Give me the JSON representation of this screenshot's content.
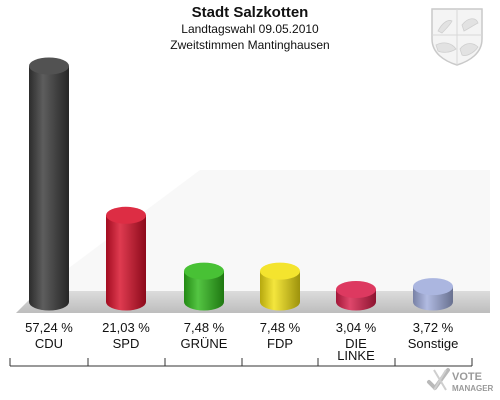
{
  "header": {
    "title": "Stadt Salzkotten",
    "subtitle": "Landtagswahl 09.05.2010",
    "subtitle2": "Zweitstimmen Mantinghausen"
  },
  "chart_data": {
    "type": "bar",
    "title": "Stadt Salzkotten",
    "subtitle": "Landtagswahl 09.05.2010 · Zweitstimmen Mantinghausen",
    "categories": [
      "CDU",
      "SPD",
      "GRÜNE",
      "FDP",
      "DIE LINKE",
      "Sonstige"
    ],
    "category_lines": [
      [
        "CDU"
      ],
      [
        "SPD"
      ],
      [
        "GRÜNE"
      ],
      [
        "FDP"
      ],
      [
        "DIE",
        "LINKE"
      ],
      [
        "Sonstige"
      ]
    ],
    "values": [
      57.24,
      21.03,
      7.48,
      7.48,
      3.04,
      3.72
    ],
    "value_labels": [
      "57,24 %",
      "21,03 %",
      "7,48 %",
      "7,48 %",
      "3,04 %",
      "3,72 %"
    ],
    "colors": [
      "#3a3a3a",
      "#d8102a",
      "#2fb81a",
      "#f2e012",
      "#d81e4a",
      "#a0acdc"
    ],
    "ylim": [
      0,
      57.24
    ],
    "grid": false,
    "legend": "none",
    "style": "3d-cylinder"
  },
  "branding": {
    "logo_line1": "VOTE",
    "logo_line2": "MANAGER"
  }
}
